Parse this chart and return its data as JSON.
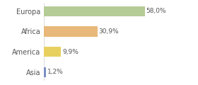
{
  "categories": [
    "Europa",
    "Africa",
    "America",
    "Asia"
  ],
  "values": [
    58.0,
    30.9,
    9.9,
    1.2
  ],
  "labels": [
    "58,0%",
    "30,9%",
    "9,9%",
    "1,2%"
  ],
  "bar_colors": [
    "#b5cc96",
    "#e8b87a",
    "#e8d060",
    "#7a8fc4"
  ],
  "background_color": "#ffffff",
  "xlim": [
    0,
    75
  ],
  "bar_height": 0.5,
  "grid_color": "#dddddd",
  "label_color": "#555555",
  "text_color": "#555555"
}
